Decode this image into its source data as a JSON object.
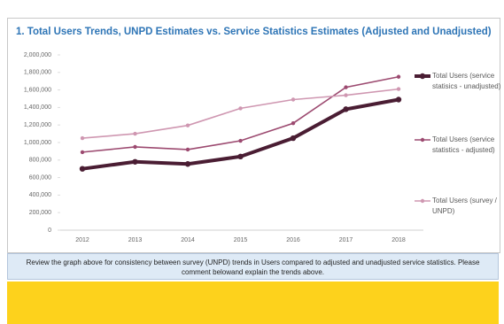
{
  "chart_data": {
    "type": "line",
    "title": "1. Total Users Trends, UNPD Estimates vs. Service Statistics Estimates (Adjusted and Unadjusted)",
    "categories": [
      "2012",
      "2013",
      "2014",
      "2015",
      "2016",
      "2017",
      "2018"
    ],
    "series": [
      {
        "name": "Total Users (service statisics - unadjusted)",
        "color": "#4a1d33",
        "values": [
          700000,
          780000,
          755000,
          840000,
          1050000,
          1380000,
          1490000
        ]
      },
      {
        "name": "Total Users (service statistics - adjusted)",
        "color": "#9c4a70",
        "values": [
          890000,
          950000,
          920000,
          1020000,
          1220000,
          1630000,
          1750000
        ]
      },
      {
        "name": "Total Users (survey / UNPD)",
        "color": "#cf97b1",
        "values": [
          1050000,
          1100000,
          1195000,
          1390000,
          1490000,
          1540000,
          1610000
        ]
      }
    ],
    "ylim": [
      0,
      2000000
    ],
    "yticks": [
      0,
      {
        "value": 200000,
        "label": "200,000"
      },
      {
        "value": 400000,
        "label": "400,000"
      },
      {
        "value": 600000,
        "label": "600,000"
      },
      {
        "value": 800000,
        "label": "800,000"
      },
      {
        "value": 1000000,
        "label": "1,000,000"
      },
      {
        "value": 1200000,
        "label": "1,200,000"
      },
      {
        "value": 1400000,
        "label": "1,400,000"
      },
      {
        "value": 1600000,
        "label": "1,600,000"
      },
      {
        "value": 1800000,
        "label": "1,800,000"
      },
      {
        "value": 2000000,
        "label": "2,000,000"
      }
    ],
    "legend": "right"
  },
  "note": "Review the graph above for consistency between survey (UNPD) trends in Users compared to adjusted and unadjusted service statistics. Please comment belowand explain the trends above."
}
